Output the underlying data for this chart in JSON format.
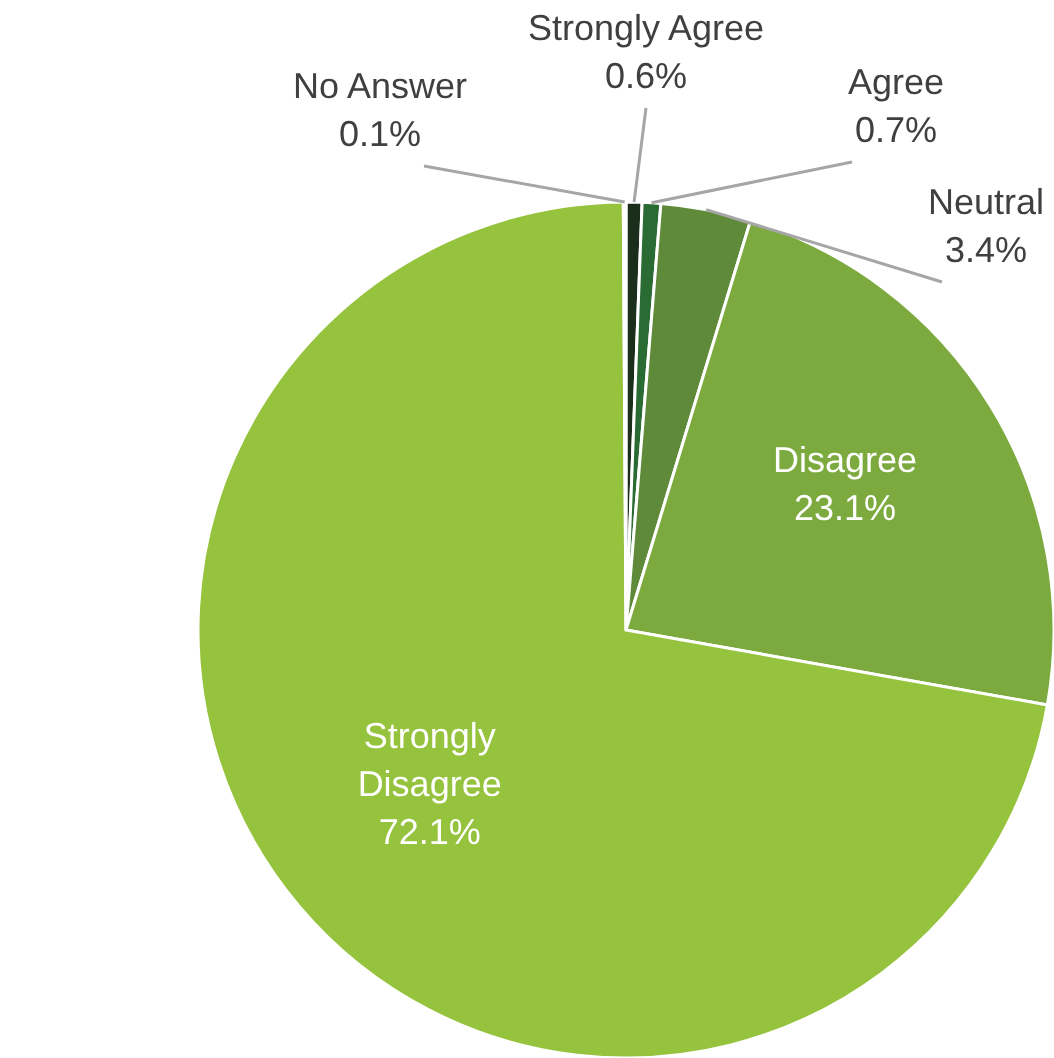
{
  "chart_data": {
    "type": "pie",
    "categories": [
      "Strongly Agree",
      "Agree",
      "Neutral",
      "Disagree",
      "Strongly Disagree",
      "No Answer"
    ],
    "values": [
      0.6,
      0.7,
      3.4,
      23.1,
      72.1,
      0.1
    ],
    "value_labels": [
      "0.6%",
      "0.7%",
      "3.4%",
      "23.1%",
      "72.1%",
      "0.1%"
    ],
    "colors": [
      "#1b2e1c",
      "#2a6b34",
      "#5e8a3a",
      "#7daa3f",
      "#96c33d",
      "#c8c8c8"
    ]
  }
}
